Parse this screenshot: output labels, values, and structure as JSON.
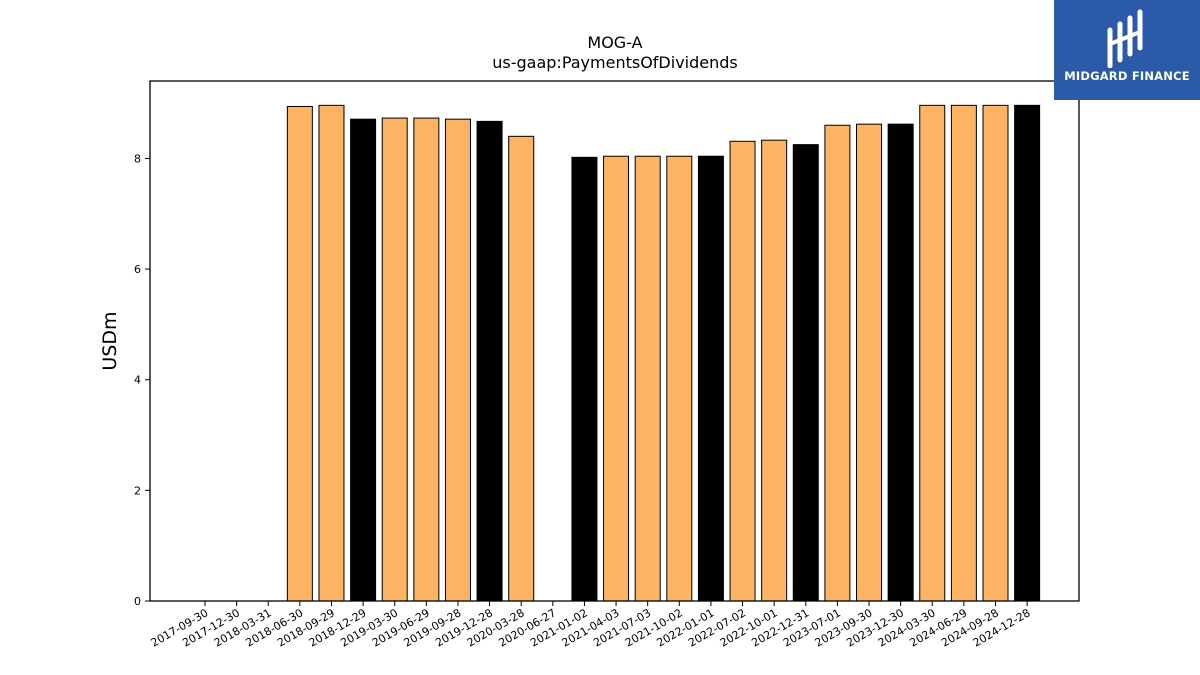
{
  "chart_data": {
    "type": "bar",
    "title": "MOG-A",
    "subtitle": "us-gaap:PaymentsOfDividends",
    "xlabel": "",
    "ylabel": "USDm",
    "ylim": [
      0,
      9.4
    ],
    "yticks": [
      0,
      2,
      4,
      6,
      8
    ],
    "grid": false,
    "categories": [
      "2017-09-30",
      "2017-12-30",
      "2018-03-31",
      "2018-06-30",
      "2018-09-29",
      "2018-12-29",
      "2019-03-30",
      "2019-06-29",
      "2019-09-28",
      "2019-12-28",
      "2020-03-28",
      "2020-06-27",
      "2021-01-02",
      "2021-04-03",
      "2021-07-03",
      "2021-10-02",
      "2022-01-01",
      "2022-07-02",
      "2022-10-01",
      "2022-12-31",
      "2023-07-01",
      "2023-09-30",
      "2023-12-30",
      "2024-03-30",
      "2024-06-29",
      "2024-09-28",
      "2024-12-28"
    ],
    "values": [
      0,
      0,
      0,
      8.94,
      8.96,
      8.71,
      8.73,
      8.73,
      8.71,
      8.67,
      8.4,
      0,
      8.02,
      8.04,
      8.04,
      8.04,
      8.04,
      8.31,
      8.33,
      8.25,
      8.6,
      8.62,
      8.62,
      8.96,
      8.96,
      8.96,
      8.96
    ],
    "bar_colors": [
      "#fdb462",
      "#fdb462",
      "#000000",
      "#fdb462",
      "#fdb462",
      "#000000",
      "#fdb462",
      "#fdb462",
      "#fdb462",
      "#000000",
      "#fdb462",
      "#fdb462",
      "#000000",
      "#fdb462",
      "#fdb462",
      "#fdb462",
      "#000000",
      "#fdb462",
      "#fdb462",
      "#000000",
      "#fdb462",
      "#fdb462",
      "#000000",
      "#fdb462",
      "#fdb462",
      "#fdb462",
      "#000000"
    ]
  },
  "logo": {
    "text": "MIDGARD FINANCE",
    "background": "#2b5aa8"
  }
}
